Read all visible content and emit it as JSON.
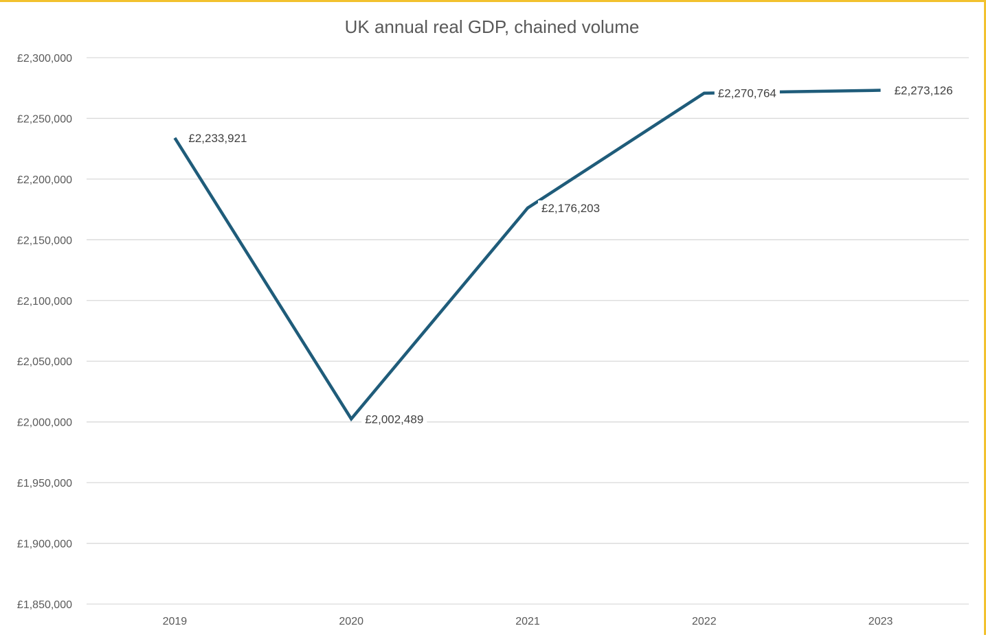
{
  "chart_data": {
    "type": "line",
    "title": "UK annual real GDP, chained volume",
    "xlabel": "",
    "ylabel": "",
    "categories": [
      "2019",
      "2020",
      "2021",
      "2022",
      "2023"
    ],
    "series": [
      {
        "name": "UK annual real GDP",
        "values": [
          2233921,
          2002489,
          2176203,
          2270764,
          2273126
        ],
        "data_labels": [
          "£2,233,921",
          "£2,002,489",
          "£2,176,203",
          "£2,270,764",
          "£2,273,126"
        ]
      }
    ],
    "ylim": [
      1850000,
      2300000
    ],
    "y_ticks": [
      1850000,
      1900000,
      1950000,
      2000000,
      2050000,
      2100000,
      2150000,
      2200000,
      2250000,
      2300000
    ],
    "y_tick_labels": [
      "£1,850,000",
      "£1,900,000",
      "£1,950,000",
      "£2,000,000",
      "£2,050,000",
      "£2,100,000",
      "£2,150,000",
      "£2,200,000",
      "£2,250,000",
      "£2,300,000"
    ],
    "grid": true,
    "legend": "none"
  },
  "colors": {
    "line": "#1f5c7a",
    "gridline": "#d9d9d9",
    "frame_accent": "#f2c12e",
    "text": "#595959"
  }
}
